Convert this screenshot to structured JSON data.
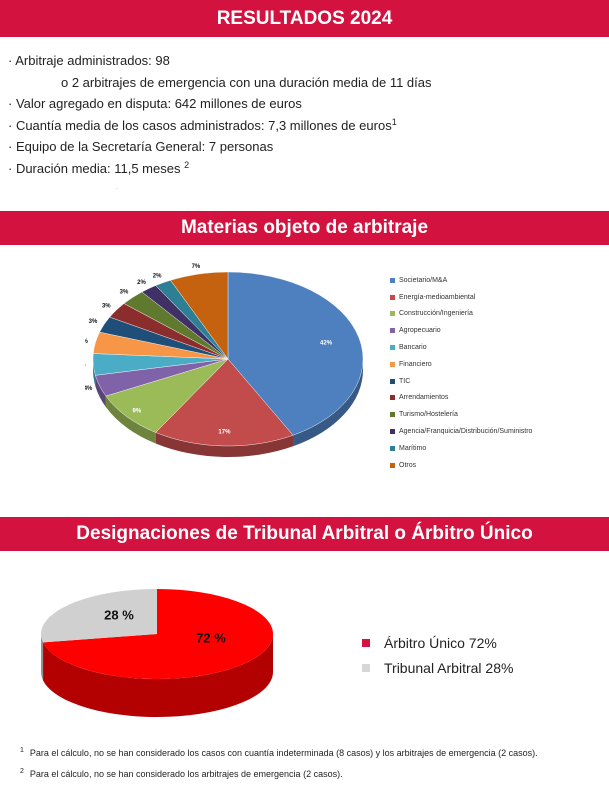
{
  "header": {
    "title": "RESULTADOS 2024"
  },
  "stats": {
    "arbitrajes": "· Arbitraje administrados: 98",
    "emergencia": "o 2 arbitrajes de emergencia con una duración media de 11 días",
    "valor": "· Valor agregado en disputa: 642 millones de euros",
    "cuantia": "· Cuantía media de los casos administrados: 7,3 millones de euros",
    "cuantia_note": "1",
    "equipo": "· Equipo de la Secretaría General: 7 personas",
    "duracion": "· Duración media: 11,5 meses ",
    "duracion_note": "2"
  },
  "section_materias": {
    "title": "Materias objeto de arbitraje"
  },
  "section_designaciones": {
    "title": "Designaciones de Tribunal Arbitral o Árbitro Único"
  },
  "chart_data": [
    {
      "type": "pie",
      "title": "Materias objeto de arbitraje",
      "categories": [
        "Societario/M&A",
        "Energía-medioambiental",
        "Construcción/Ingeniería",
        "Agropecuario",
        "Bancario",
        "Financiero",
        "TIC",
        "Arrendamientos",
        "Turismo/Hostelería",
        "Agencia/Franquicia/Distribución/Suministro",
        "Marítimo",
        "Otros"
      ],
      "values": [
        42,
        17,
        9,
        4,
        4,
        4,
        3,
        3,
        3,
        2,
        2,
        7
      ],
      "labels": [
        "42%",
        "17%",
        "9%",
        "4%",
        "4%",
        "4%",
        "3%",
        "3%",
        "3%",
        "2%",
        "2%",
        "7%"
      ],
      "colors": [
        "#4e7fbf",
        "#c24b4b",
        "#9bbb59",
        "#7f62a8",
        "#4bacc6",
        "#f79646",
        "#1f4e79",
        "#8b2d2d",
        "#5f7a2e",
        "#3f3166",
        "#2d7f95",
        "#c4620f"
      ],
      "legend": "right"
    },
    {
      "type": "pie",
      "title": "Designaciones de Tribunal Arbitral o Árbitro Único",
      "categories": [
        "Árbitro Único",
        "Tribunal Arbitral"
      ],
      "values": [
        72,
        28
      ],
      "labels": [
        "72 %",
        "28 %"
      ],
      "legend_labels": [
        "Árbitro Único 72%",
        "Tribunal Arbitral 28%"
      ],
      "colors": [
        "#ff0000",
        "#d0d0d0"
      ],
      "legend": "right"
    }
  ],
  "footnotes": [
    {
      "mark": "1",
      "text": "Para el cálculo, no se han considerado los casos con cuantía indeterminada (8 casos) y los arbitrajes de emergencia (2 casos)."
    },
    {
      "mark": "2",
      "text": "Para el cálculo, no se han considerado los arbitrajes de emergencia (2 casos)."
    }
  ]
}
